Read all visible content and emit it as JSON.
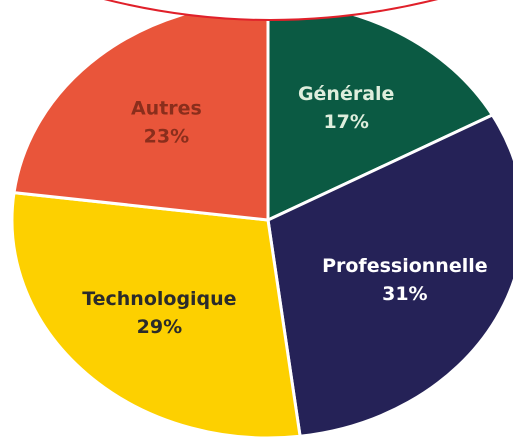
{
  "chart_data": {
    "type": "pie",
    "categories": [
      "Générale",
      "Professionnelle",
      "Technologique",
      "Autres"
    ],
    "values": [
      17,
      31,
      29,
      23
    ],
    "value_labels": [
      "17%",
      "31%",
      "29%",
      "23%"
    ],
    "colors": [
      "#0b5a43",
      "#252257",
      "#fdd000",
      "#e9553a"
    ],
    "label_colors": [
      "#dfeedd",
      "#ffffff",
      "#2b2b2b",
      "#8a2e1c"
    ]
  }
}
